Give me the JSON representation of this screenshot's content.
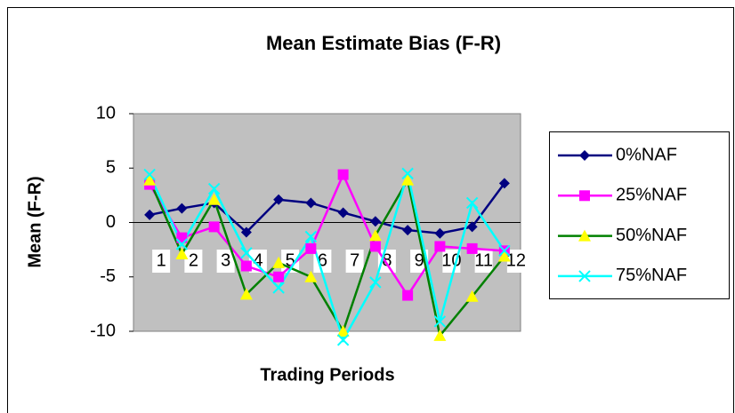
{
  "chart_data": {
    "type": "line",
    "title": "Mean Estimate Bias (F-R)",
    "x_label": "Trading Periods",
    "y_label": "Mean (F-R)",
    "categories": [
      "1",
      "2",
      "3",
      "4",
      "5",
      "6",
      "7",
      "8",
      "9",
      "10",
      "11",
      "12"
    ],
    "ylim": [
      -10,
      10
    ],
    "yticks": [
      -10,
      -5,
      0,
      5,
      10
    ],
    "legend": "right",
    "series": [
      {
        "name": "0%NAF",
        "color": "#000080",
        "marker": "diamond",
        "marker_color": "#000080",
        "values": [
          0.7,
          1.3,
          1.8,
          -0.9,
          2.1,
          1.8,
          0.9,
          0.1,
          -0.7,
          -1.0,
          -0.4,
          3.6
        ]
      },
      {
        "name": "25%NAF",
        "color": "#ff00ff",
        "marker": "square",
        "marker_color": "#ff00ff",
        "values": [
          3.5,
          -1.4,
          -0.4,
          -4.0,
          -5.0,
          -2.4,
          4.4,
          -2.2,
          -6.7,
          -2.2,
          -2.4,
          -2.6
        ]
      },
      {
        "name": "50%NAF",
        "color": "#008000",
        "marker": "triangle",
        "marker_color": "#ffff00",
        "values": [
          3.9,
          -2.9,
          2.1,
          -6.6,
          -3.7,
          -5.0,
          -10.0,
          -1.2,
          3.9,
          -10.4,
          -6.8,
          -3.1
        ]
      },
      {
        "name": "75%NAF",
        "color": "#00ffff",
        "marker": "x",
        "marker_color": "#00ffff",
        "values": [
          4.4,
          -2.0,
          3.1,
          -2.8,
          -6.0,
          -1.3,
          -10.8,
          -5.5,
          4.5,
          -9.1,
          1.8,
          -2.6
        ]
      }
    ]
  }
}
